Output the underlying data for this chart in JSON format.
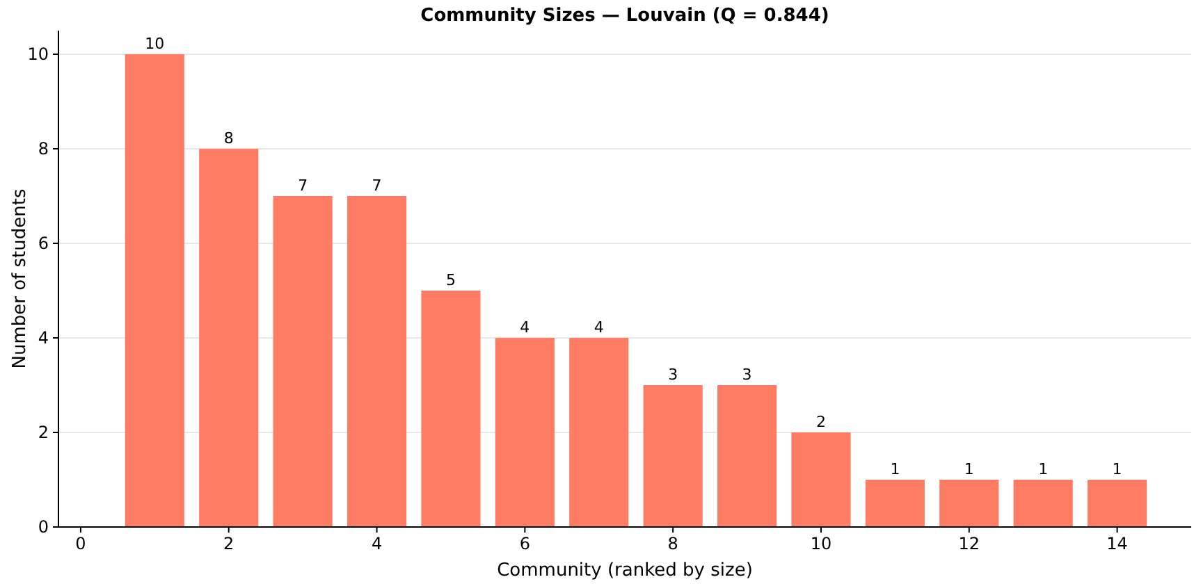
{
  "chart_data": {
    "type": "bar",
    "title": "Community Sizes — Louvain (Q = 0.844)",
    "xlabel": "Community (ranked by size)",
    "ylabel": "Number of students",
    "x": [
      1,
      2,
      3,
      4,
      5,
      6,
      7,
      8,
      9,
      10,
      11,
      12,
      13,
      14
    ],
    "values": [
      10,
      8,
      7,
      7,
      5,
      4,
      4,
      3,
      3,
      2,
      1,
      1,
      1,
      1
    ],
    "color": "#fe7c64",
    "xlim": [
      -0.3,
      15
    ],
    "xticks": [
      0,
      2,
      4,
      6,
      8,
      10,
      12,
      14
    ],
    "ylim": [
      0,
      10.5
    ],
    "yticks": [
      0,
      2,
      4,
      6,
      8,
      10
    ],
    "grid": "y",
    "data_labels": true
  }
}
